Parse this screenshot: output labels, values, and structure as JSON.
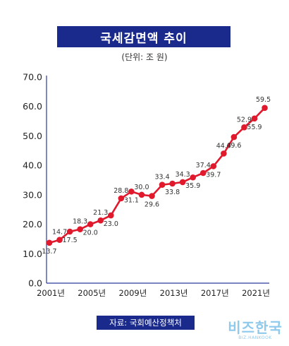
{
  "header": {
    "title": "국세감면액 추이",
    "subtitle": "(단위: 조 원)"
  },
  "footer": {
    "source": "자료: 국회예산정책처",
    "logo_main": "비즈한국",
    "logo_sub": "BIZ.HANKOOK"
  },
  "colors": {
    "line": "#e0192d",
    "axis": "#2a3a9a",
    "title_bg": "#1a2a8c",
    "logo": "#8fc9ec"
  },
  "chart_data": {
    "type": "line",
    "title": "국세감면액 추이",
    "subtitle": "(단위: 조 원)",
    "xlabel": "",
    "ylabel": "",
    "ylim": [
      0,
      70
    ],
    "yticks": [
      "0.0",
      "10.0",
      "20.0",
      "30.0",
      "40.0",
      "50.0",
      "60.0",
      "70.0"
    ],
    "xticks": [
      "2001년",
      "2005년",
      "2009년",
      "2013년",
      "2017년",
      "2021년"
    ],
    "grid": false,
    "legend": "none",
    "series": [
      {
        "values": [
          13.7,
          14.7,
          17.5,
          18.3,
          20.0,
          21.3,
          23.0,
          28.8,
          31.1,
          30.0,
          29.6,
          33.4,
          33.8,
          34.3,
          35.9,
          37.4,
          39.7,
          44.0,
          49.6,
          52.9,
          55.9,
          59.5
        ],
        "labels": [
          "13.7",
          "14.7",
          "17.5",
          "18.3",
          "20.0",
          "21.3",
          "23.0",
          "28.8",
          "31.1",
          "30.0",
          "29.6",
          "33.4",
          "33.8",
          "34.3",
          "35.9",
          "37.4",
          "39.7",
          "44.0",
          "49.6",
          "52.9",
          "55.9",
          "59.5"
        ]
      }
    ]
  }
}
